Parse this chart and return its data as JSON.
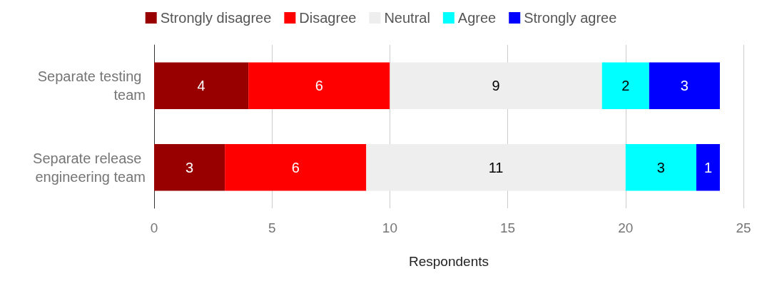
{
  "chart_data": {
    "type": "bar",
    "orientation": "horizontal",
    "stacked": true,
    "xlabel": "Respondents",
    "categories": [
      "Separate testing team",
      "Separate release engineering team"
    ],
    "series": [
      {
        "name": "Strongly disagree",
        "color": "#980000",
        "values": [
          4,
          3
        ]
      },
      {
        "name": "Disagree",
        "color": "#ff0000",
        "values": [
          6,
          6
        ]
      },
      {
        "name": "Neutral",
        "color": "#eeeeee",
        "values": [
          9,
          11
        ]
      },
      {
        "name": "Agree",
        "color": "#00ffff",
        "values": [
          2,
          3
        ]
      },
      {
        "name": "Strongly agree",
        "color": "#0000ff",
        "values": [
          3,
          1
        ]
      }
    ],
    "xlim": [
      0,
      25
    ],
    "xticks": [
      0,
      5,
      10,
      15,
      20,
      25
    ],
    "grid": "x",
    "legend": "top",
    "data_labels": true
  }
}
